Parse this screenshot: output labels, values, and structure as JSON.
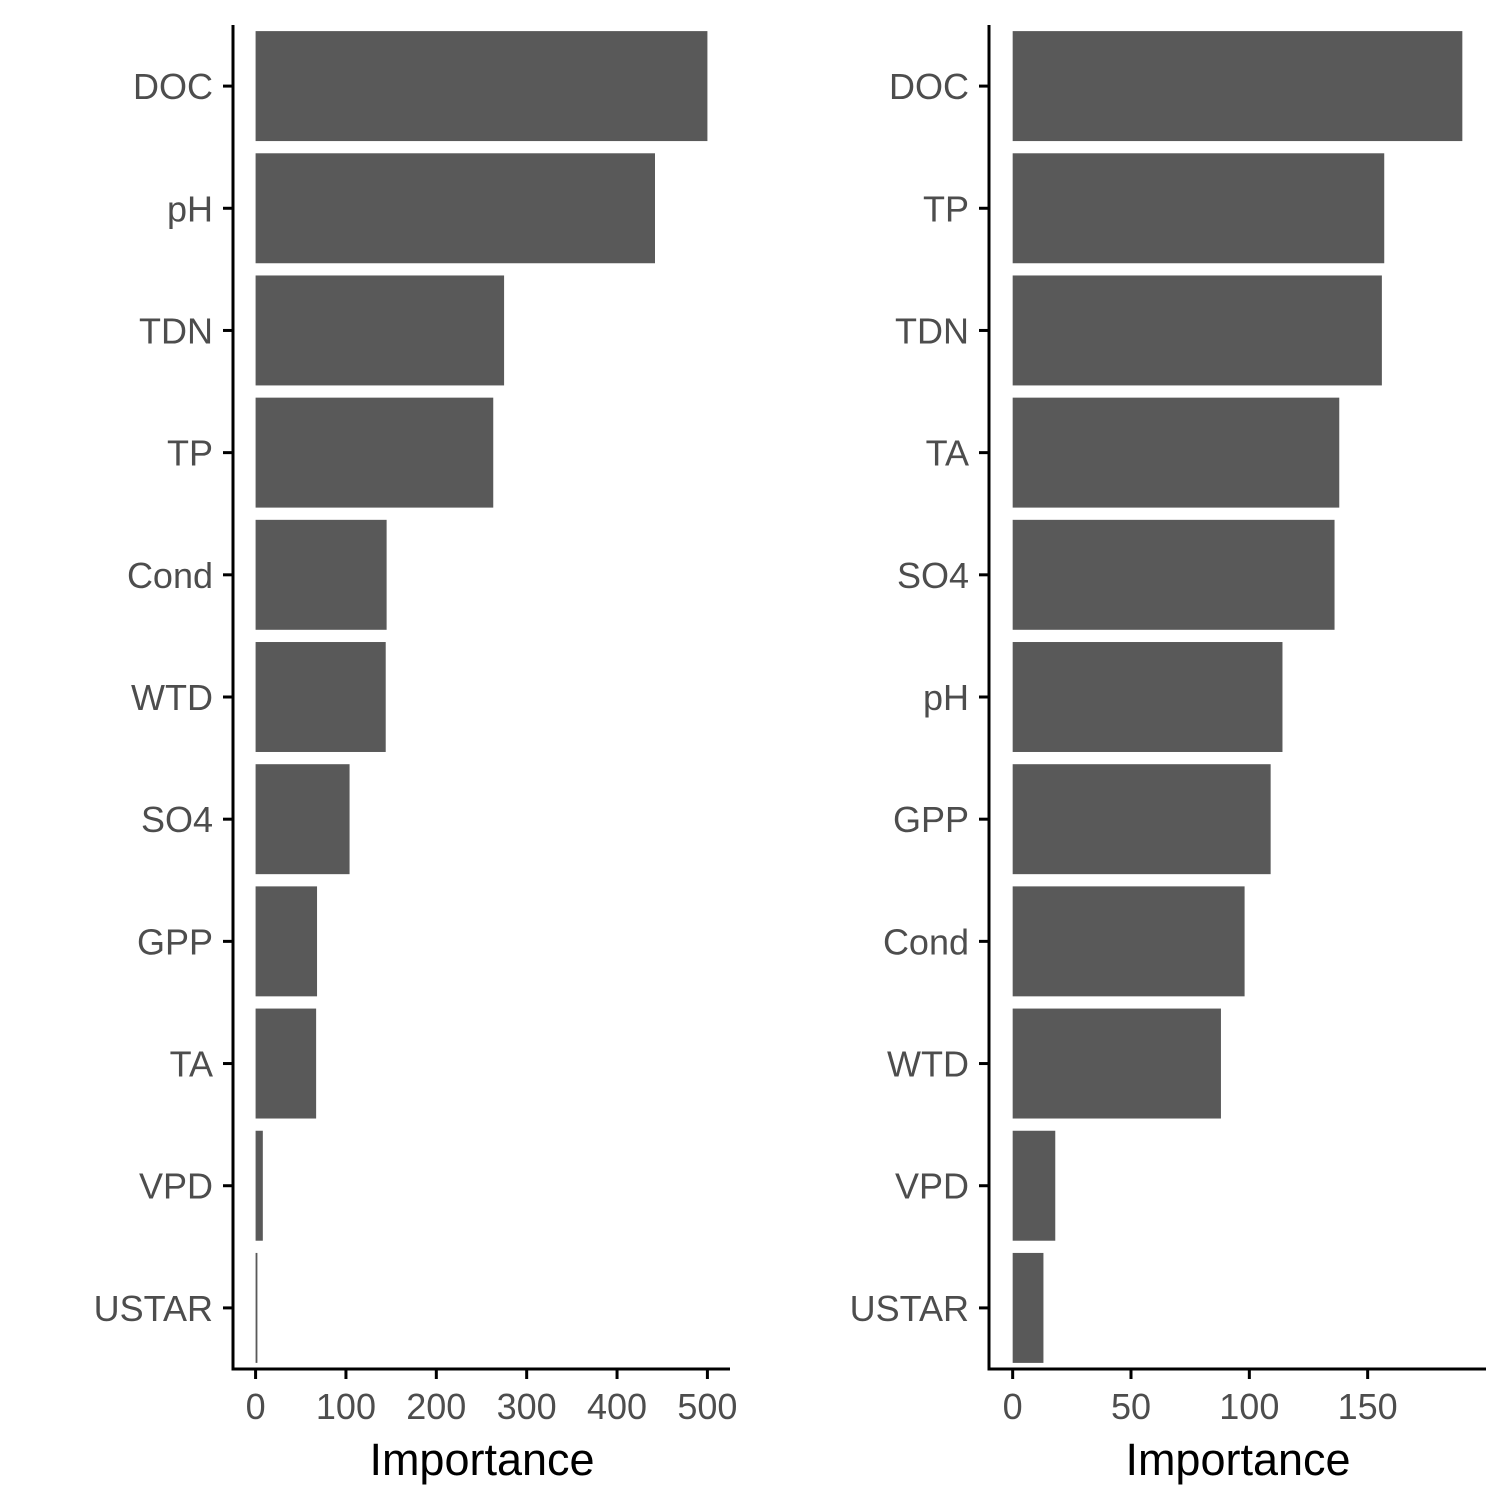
{
  "chart_data": [
    {
      "type": "bar",
      "orientation": "horizontal",
      "categories": [
        "DOC",
        "pH",
        "TDN",
        "TP",
        "Cond",
        "WTD",
        "SO4",
        "GPP",
        "TA",
        "VPD",
        "USTAR"
      ],
      "values": [
        500,
        442,
        275,
        263,
        145,
        144,
        104,
        68,
        67,
        8,
        2
      ],
      "xlabel": "Importance",
      "ylabel": "",
      "xlim": [
        -25,
        525
      ],
      "xticks": [
        0,
        100,
        200,
        300,
        400,
        500
      ],
      "grid": false,
      "legend": "none"
    },
    {
      "type": "bar",
      "orientation": "horizontal",
      "categories": [
        "DOC",
        "TP",
        "TDN",
        "TA",
        "SO4",
        "pH",
        "GPP",
        "Cond",
        "WTD",
        "VPD",
        "USTAR"
      ],
      "values": [
        190,
        157,
        156,
        138,
        136,
        114,
        109,
        98,
        88,
        18,
        13
      ],
      "xlabel": "Importance",
      "ylabel": "",
      "xlim": [
        -10,
        200
      ],
      "xticks": [
        0,
        50,
        100,
        150
      ],
      "grid": false,
      "legend": "none"
    }
  ],
  "colors": {
    "bar_fill": "#595959",
    "axis_line": "#000000",
    "tick_label": "#4d4d4d",
    "axis_title": "#000000"
  }
}
